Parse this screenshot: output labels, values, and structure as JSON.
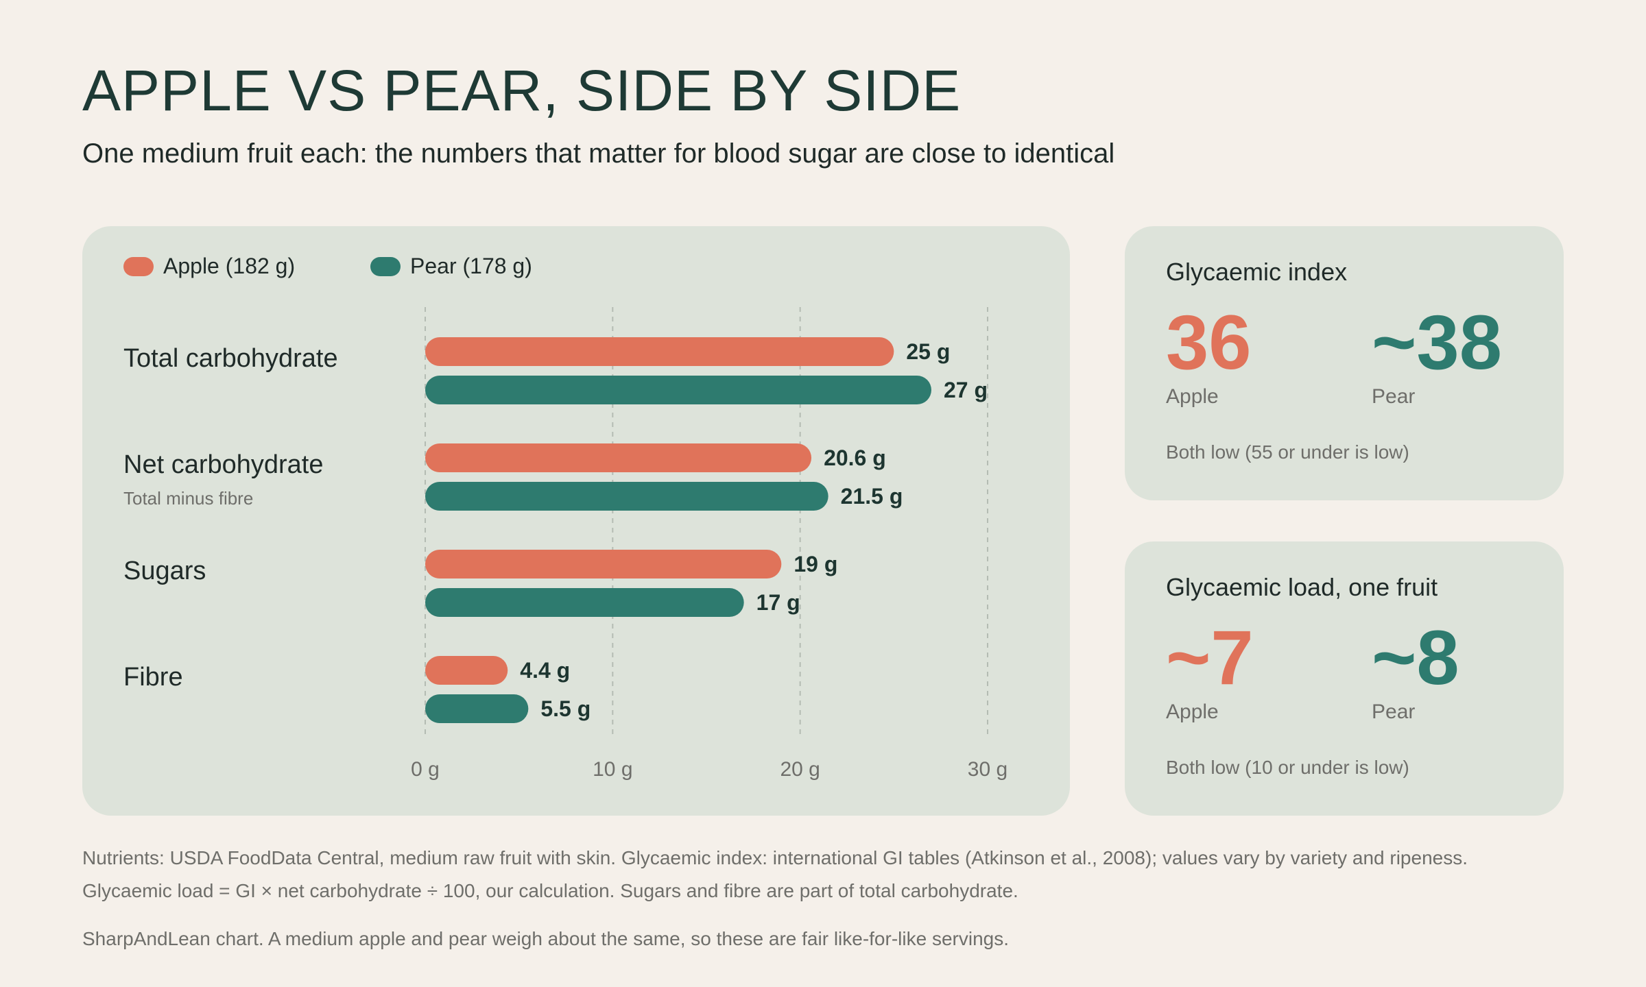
{
  "colors": {
    "apple": "#e0735a",
    "pear": "#2e7b6f",
    "grid": "#b4bcb3",
    "text": "#1d3530",
    "muted": "#6e6e6a"
  },
  "title": "APPLE VS PEAR, SIDE BY SIDE",
  "subtitle": "One medium fruit each: the numbers that matter for blood sugar are close to identical",
  "chart_data": {
    "type": "bar",
    "orientation": "horizontal",
    "categories": [
      "Total carbohydrate",
      "Net carbohydrate",
      "Sugars",
      "Fibre"
    ],
    "category_sublabels": [
      "",
      "Total minus fibre",
      "",
      ""
    ],
    "series": [
      {
        "name": "Apple (182 g)",
        "values": [
          25,
          20.6,
          19,
          4.4
        ],
        "labels": [
          "25 g",
          "20.6 g",
          "19 g",
          "4.4 g"
        ]
      },
      {
        "name": "Pear (178 g)",
        "values": [
          27,
          21.5,
          17,
          5.5
        ],
        "labels": [
          "27 g",
          "21.5 g",
          "17 g",
          "5.5 g"
        ]
      }
    ],
    "x_ticks": [
      0,
      10,
      20,
      30
    ],
    "x_tick_labels": [
      "0 g",
      "10 g",
      "20 g",
      "30 g"
    ],
    "xlim": [
      0,
      30
    ],
    "grid": true,
    "legend": "top-left"
  },
  "gi_card": {
    "title": "Glycaemic index",
    "apple_value": "36",
    "apple_label": "Apple",
    "pear_value": "~38",
    "pear_label": "Pear",
    "note": "Both low (55 or under is low)"
  },
  "gl_card": {
    "title": "Glycaemic load, one fruit",
    "apple_value": "~7",
    "apple_label": "Apple",
    "pear_value": "~8",
    "pear_label": "Pear",
    "note": "Both low (10 or under is low)"
  },
  "footnotes": {
    "line1": "Nutrients: USDA FoodData Central, medium raw fruit with skin. Glycaemic index: international GI tables (Atkinson et al., 2008); values vary by variety and ripeness.",
    "line2": "Glycaemic load = GI × net carbohydrate ÷ 100, our calculation. Sugars and fibre are part of total carbohydrate.",
    "line3": "SharpAndLean chart. A medium apple and pear weigh about the same, so these are fair like-for-like servings."
  }
}
